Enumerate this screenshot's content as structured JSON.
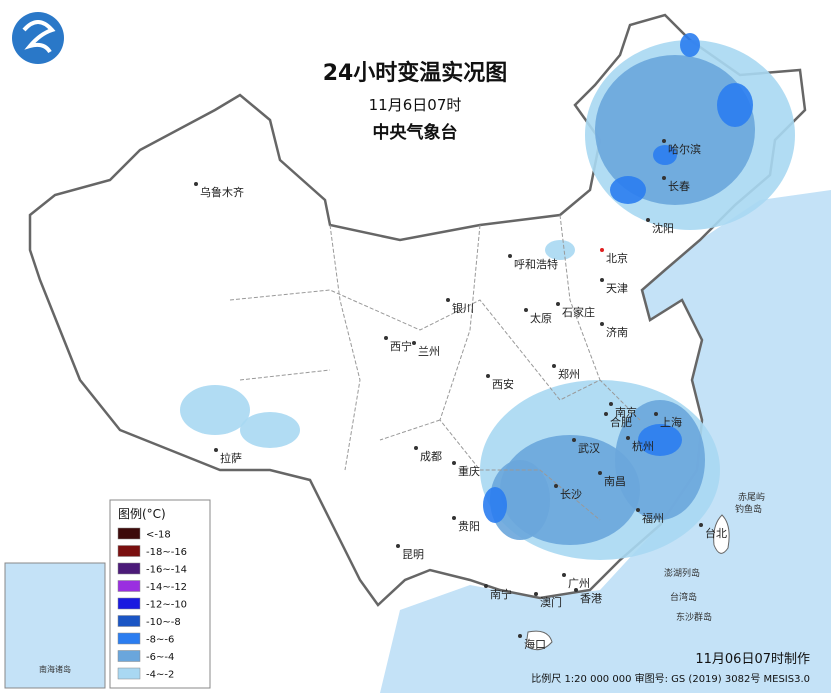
{
  "header": {
    "title": "24小时变温实况图",
    "time": "11月6日07时",
    "agency": "中央气象台"
  },
  "legend": {
    "title": "图例(°C)",
    "items": [
      {
        "label": "<-18",
        "color": "#3d0a0a"
      },
      {
        "label": "-18~-16",
        "color": "#7a1010"
      },
      {
        "label": "-16~-14",
        "color": "#4b1a78"
      },
      {
        "label": "-14~-12",
        "color": "#9a2fe0"
      },
      {
        "label": "-12~-10",
        "color": "#1a1ae0"
      },
      {
        "label": "-10~-8",
        "color": "#1b55c4"
      },
      {
        "label": "-8~-6",
        "color": "#2b7df0"
      },
      {
        "label": "-6~-4",
        "color": "#6aa6dc"
      },
      {
        "label": "-4~-2",
        "color": "#a9d8f2"
      }
    ]
  },
  "cities": [
    "乌鲁木齐",
    "哈尔滨",
    "长春",
    "沈阳",
    "北京",
    "天津",
    "呼和浩特",
    "石家庄",
    "太原",
    "济南",
    "银川",
    "西宁",
    "兰州",
    "郑州",
    "西安",
    "南京",
    "合肥",
    "上海",
    "杭州",
    "武汉",
    "成都",
    "重庆",
    "长沙",
    "南昌",
    "福州",
    "台北",
    "贵阳",
    "昆明",
    "拉萨",
    "南宁",
    "广州",
    "澳门",
    "香港",
    "海口"
  ],
  "islands": [
    "赤尾屿",
    "钓鱼岛",
    "澎湖列岛",
    "台湾岛",
    "东沙群岛"
  ],
  "inset": {
    "label": "南海诸岛"
  },
  "footer": {
    "made": "11月06日07时制作",
    "scale": "比例尺 1:20 000 000  审图号: GS (2019) 3082号 MESIS3.0"
  }
}
